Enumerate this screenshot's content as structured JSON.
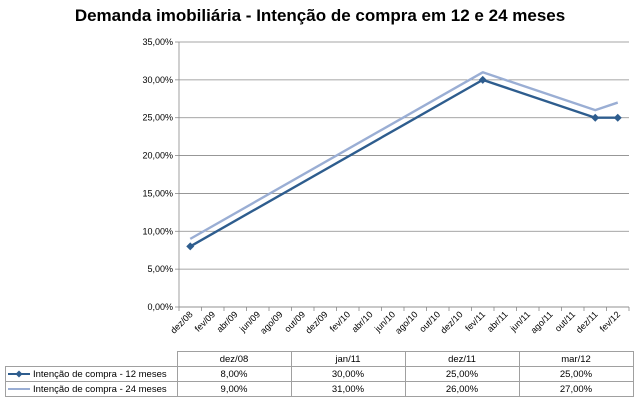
{
  "chart_data": {
    "type": "line",
    "title": "Demanda imobiliária - Intenção de compra em 12 e 24 meses",
    "xlabel": "",
    "ylabel": "",
    "x_tick_labels": [
      "dez/08",
      "fev/09",
      "abr/09",
      "jun/09",
      "ago/09",
      "out/09",
      "dez/09",
      "fev/10",
      "abr/10",
      "jun/10",
      "ago/10",
      "out/10",
      "dez/10",
      "fev/11",
      "abr/11",
      "jun/11",
      "ago/11",
      "out/11",
      "dez/11",
      "fev/12"
    ],
    "y_tick_labels": [
      "0,00%",
      "5,00%",
      "10,00%",
      "15,00%",
      "20,00%",
      "25,00%",
      "30,00%",
      "35,00%"
    ],
    "ylim": [
      0,
      35
    ],
    "grid": "horizontal",
    "legend": "data-table",
    "table_header": [
      "dez/08",
      "jan/11",
      "dez/11",
      "mar/12"
    ],
    "series": [
      {
        "name": "Intenção de compra - 12 meses",
        "color": "#2e5d8e",
        "marker": "diamond",
        "x": [
          "dez/08",
          "jan/11",
          "dez/11",
          "mar/12"
        ],
        "x_index": [
          0,
          13,
          18,
          19
        ],
        "y": [
          8,
          30,
          25,
          25
        ],
        "labels": [
          "8,00%",
          "30,00%",
          "25,00%",
          "25,00%"
        ]
      },
      {
        "name": "Intenção de compra  - 24 meses",
        "color": "#9aaed4",
        "marker": "none",
        "x": [
          "dez/08",
          "jan/11",
          "dez/11",
          "mar/12"
        ],
        "x_index": [
          0,
          13,
          18,
          19
        ],
        "y": [
          9,
          31,
          26,
          27
        ],
        "labels": [
          "9,00%",
          "31,00%",
          "26,00%",
          "27,00%"
        ]
      }
    ]
  }
}
